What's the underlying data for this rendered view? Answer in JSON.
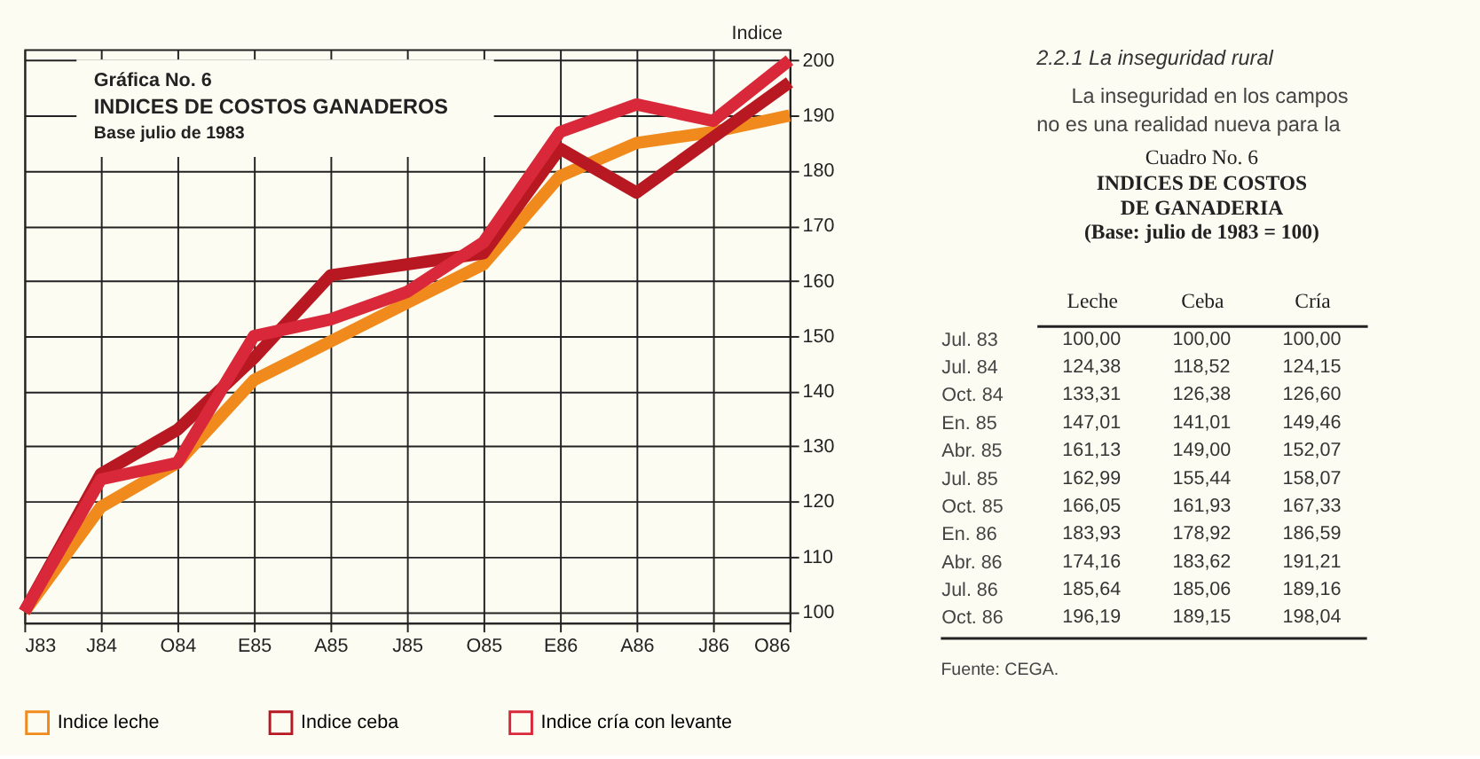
{
  "chart_data": [
    {
      "type": "line",
      "title": "INDICES DE COSTOS GANADEROS",
      "subtitle": "Base julio de 1983",
      "annotations": [
        "Gráfica No. 6"
      ],
      "ylabel": "Indice",
      "categories": [
        "J83",
        "J84",
        "O84",
        "E85",
        "A85",
        "J85",
        "O85",
        "E86",
        "A86",
        "J86",
        "O86"
      ],
      "series": [
        {
          "name": "Indice leche",
          "color": "#f08a1c",
          "values": [
            100,
            119,
            127,
            142,
            149,
            156,
            163,
            179,
            185,
            187,
            190
          ]
        },
        {
          "name": "Indice ceba",
          "color": "#b81822",
          "values": [
            100,
            125,
            133,
            146,
            161,
            163,
            165,
            184,
            176,
            186,
            196
          ]
        },
        {
          "name": "Indice cría con levante",
          "color": "#d8283a",
          "values": [
            100,
            124,
            127,
            150,
            153,
            158,
            167,
            187,
            192,
            189,
            200
          ]
        }
      ],
      "ylim": [
        98,
        202
      ],
      "yticks": [
        100,
        110,
        120,
        130,
        140,
        150,
        160,
        170,
        180,
        190,
        200
      ],
      "grid": true,
      "legend": "bottom",
      "marker": "none",
      "line_style": "solid"
    },
    {
      "type": "other",
      "title": "Cuadro No. 6",
      "subtitle": "INDICES DE COSTOS\nDE GANADERIA\n(Base: julio de 1983 = 100)",
      "annotations": [
        "2.2.1 La inseguridad rural",
        "La inseguridad en los campos\nno es una realidad nueva para la",
        "Fuente: CEGA."
      ],
      "categories": [
        "Jul. 83",
        "Jul. 84",
        "Oct. 84",
        "En. 85",
        "Abr. 85",
        "Jul. 85",
        "Oct. 85",
        "En. 86",
        "Abr. 86",
        "Jul. 86",
        "Oct. 86"
      ],
      "series": [
        {
          "name": "Leche",
          "values": [
            100.0,
            124.38,
            133.31,
            147.01,
            161.13,
            162.99,
            166.05,
            183.93,
            174.16,
            185.64,
            196.19
          ],
          "value_labels": [
            "100,00",
            "124,38",
            "133,31",
            "147,01",
            "161,13",
            "162,99",
            "166,05",
            "183,93",
            "174,16",
            "185,64",
            "196,19"
          ]
        },
        {
          "name": "Ceba",
          "values": [
            100.0,
            118.52,
            126.38,
            141.01,
            149.0,
            155.44,
            161.93,
            178.92,
            183.62,
            185.06,
            189.15
          ],
          "value_labels": [
            "100,00",
            "118,52",
            "126,38",
            "141,01",
            "149,00",
            "155,44",
            "161,93",
            "178,92",
            "183,62",
            "185,06",
            "189,15"
          ]
        },
        {
          "name": "Cría",
          "values": [
            100.0,
            124.15,
            126.6,
            149.46,
            152.07,
            158.07,
            167.33,
            186.59,
            191.21,
            189.16,
            198.04
          ],
          "value_labels": [
            "100,00",
            "124,15",
            "126,60",
            "149,46",
            "152,07",
            "158,07",
            "167,33",
            "186,59",
            "191,21",
            "189,16",
            "198,04"
          ]
        }
      ]
    }
  ]
}
